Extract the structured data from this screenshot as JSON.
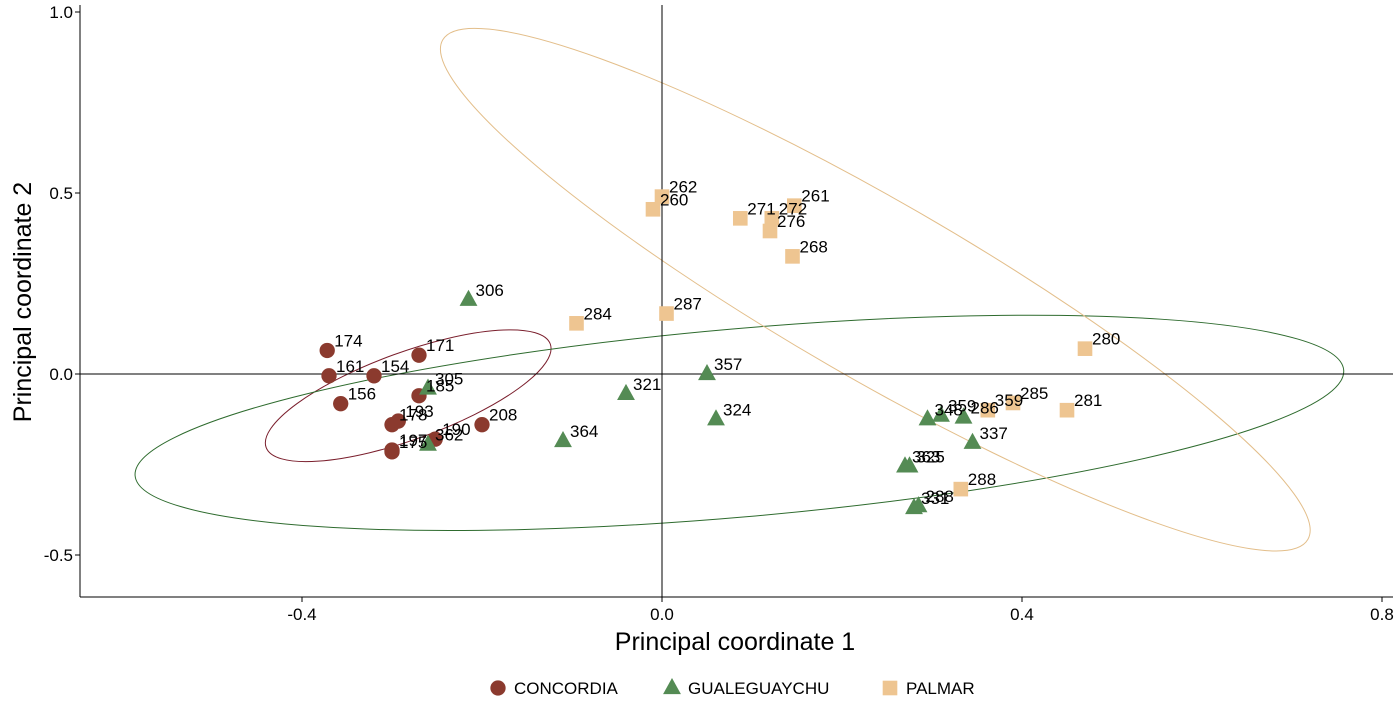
{
  "chart_data": {
    "type": "scatter",
    "xlabel": "Principal coordinate 1",
    "ylabel": "Principal coordinate 2",
    "xlim": [
      -0.64,
      0.805
    ],
    "ylim": [
      -0.615,
      1.01
    ],
    "x_ticks": [
      {
        "value": -0.4,
        "label": "-0.4"
      },
      {
        "value": 0.0,
        "label": "0.0"
      },
      {
        "value": 0.4,
        "label": "0.4"
      },
      {
        "value": 0.8,
        "label": "0.8"
      }
    ],
    "y_ticks": [
      {
        "value": -0.5,
        "label": "-0.5"
      },
      {
        "value": 0.0,
        "label": "0.0"
      },
      {
        "value": 0.5,
        "label": "0.5"
      },
      {
        "value": 1.0,
        "label": "1.0"
      }
    ],
    "reference_lines": {
      "x": 0,
      "y": 0
    },
    "grid": false,
    "legend_position": "bottom",
    "series": [
      {
        "name": "CONCORDIA",
        "marker": "circle",
        "color": "#8B3A2E",
        "ellipse": {
          "cx": -0.282,
          "cy": -0.06,
          "rx": 0.168,
          "ry": 0.12,
          "angle_deg": -20,
          "color": "#7A1E2C"
        },
        "points": [
          {
            "label": "174",
            "x": -0.372,
            "y": 0.065
          },
          {
            "label": "161",
            "x": -0.37,
            "y": -0.005
          },
          {
            "label": "154",
            "x": -0.32,
            "y": -0.005
          },
          {
            "label": "171",
            "x": -0.27,
            "y": 0.052
          },
          {
            "label": "156",
            "x": -0.357,
            "y": -0.082
          },
          {
            "label": "185",
            "x": -0.27,
            "y": -0.06
          },
          {
            "label": "178",
            "x": -0.3,
            "y": -0.14
          },
          {
            "label": "193",
            "x": -0.293,
            "y": -0.13
          },
          {
            "label": "197",
            "x": -0.3,
            "y": -0.21
          },
          {
            "label": "175",
            "x": -0.3,
            "y": -0.215
          },
          {
            "label": "190",
            "x": -0.252,
            "y": -0.18
          },
          {
            "label": "208",
            "x": -0.2,
            "y": -0.14
          }
        ]
      },
      {
        "name": "GUALEGUAYCHU",
        "marker": "triangle",
        "color": "#548B54",
        "ellipse": {
          "cx": 0.086,
          "cy": -0.135,
          "rx": 0.674,
          "ry": 0.26,
          "angle_deg": -5,
          "color": "#2E6B2E"
        },
        "points": [
          {
            "label": "306",
            "x": -0.215,
            "y": 0.205
          },
          {
            "label": "305",
            "x": -0.26,
            "y": -0.04
          },
          {
            "label": "362",
            "x": -0.26,
            "y": -0.195
          },
          {
            "label": "364",
            "x": -0.11,
            "y": -0.185
          },
          {
            "label": "321",
            "x": -0.04,
            "y": -0.055
          },
          {
            "label": "357",
            "x": 0.05,
            "y": 0.0
          },
          {
            "label": "324",
            "x": 0.06,
            "y": -0.125
          },
          {
            "label": "359",
            "x": 0.31,
            "y": -0.115
          },
          {
            "label": "348",
            "x": 0.295,
            "y": -0.125
          },
          {
            "label": "286",
            "x": 0.335,
            "y": -0.12
          },
          {
            "label": "337",
            "x": 0.345,
            "y": -0.19
          },
          {
            "label": "325",
            "x": 0.275,
            "y": -0.255
          },
          {
            "label": "363",
            "x": 0.27,
            "y": -0.255
          },
          {
            "label": "288",
            "x": 0.285,
            "y": -0.365
          },
          {
            "label": "331",
            "x": 0.28,
            "y": -0.37
          }
        ]
      },
      {
        "name": "PALMAR",
        "marker": "square",
        "color": "#EEC591",
        "ellipse": {
          "cx": 0.237,
          "cy": 0.233,
          "rx": 0.555,
          "ry": 0.245,
          "angle_deg": 30,
          "color": "#E3BE8A"
        },
        "points": [
          {
            "label": "262",
            "x": 0.0,
            "y": 0.49
          },
          {
            "label": "260",
            "x": -0.01,
            "y": 0.455
          },
          {
            "label": "271",
            "x": 0.087,
            "y": 0.43
          },
          {
            "label": "276",
            "x": 0.12,
            "y": 0.395
          },
          {
            "label": "261",
            "x": 0.147,
            "y": 0.465
          },
          {
            "label": "272",
            "x": 0.122,
            "y": 0.43
          },
          {
            "label": "268",
            "x": 0.145,
            "y": 0.325
          },
          {
            "label": "284",
            "x": -0.095,
            "y": 0.14
          },
          {
            "label": "287",
            "x": 0.005,
            "y": 0.167
          },
          {
            "label": "280",
            "x": 0.47,
            "y": 0.07
          },
          {
            "label": "285",
            "x": 0.39,
            "y": -0.08
          },
          {
            "label": "281",
            "x": 0.45,
            "y": -0.1
          },
          {
            "label": "359",
            "x": 0.362,
            "y": -0.1
          },
          {
            "label": "288",
            "x": 0.332,
            "y": -0.318
          }
        ]
      }
    ]
  }
}
